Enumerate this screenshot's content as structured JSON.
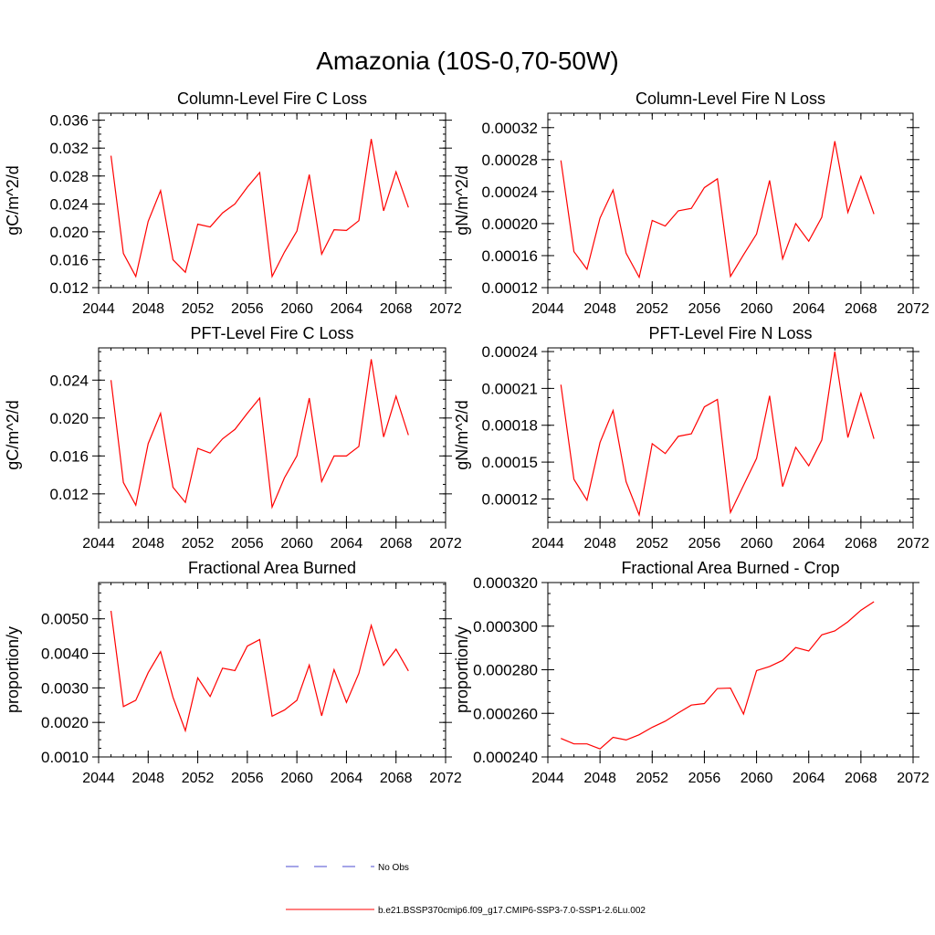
{
  "figure_title": "Amazonia (10S-0,70-50W)",
  "legend": {
    "no_obs_label": "No Obs",
    "case_label": "b.e21.BSSP370cmip6.f09_g17.CMIP6-SSP3-7.0-SSP1-2.6Lu.002",
    "case_color": "#ff0000",
    "no_obs_color": "#4b4bd2"
  },
  "chart_data": [
    {
      "type": "line",
      "title": "Column-Level Fire C Loss",
      "xlabel": "",
      "ylabel": "gC/m^2/d",
      "xlim": [
        2044,
        2072
      ],
      "ylim": [
        0.012,
        0.037
      ],
      "xticks": [
        "2044",
        "2048",
        "2052",
        "2056",
        "2060",
        "2064",
        "2068",
        "2072"
      ],
      "yticks": [
        "0.012",
        "0.016",
        "0.020",
        "0.024",
        "0.028",
        "0.032",
        "0.036"
      ],
      "grid": false,
      "series": [
        {
          "x": [
            2045,
            2046,
            2047,
            2048,
            2049,
            2050,
            2051,
            2052,
            2053,
            2054,
            2055,
            2056,
            2057,
            2058,
            2059,
            2060,
            2061,
            2062,
            2063,
            2064,
            2065,
            2066,
            2067,
            2068,
            2069
          ],
          "values": [
            0.0309,
            0.0169,
            0.0136,
            0.0215,
            0.0259,
            0.016,
            0.0142,
            0.0211,
            0.0207,
            0.0227,
            0.024,
            0.0264,
            0.0285,
            0.0136,
            0.0171,
            0.0201,
            0.0282,
            0.0168,
            0.0203,
            0.0202,
            0.0216,
            0.0333,
            0.023,
            0.0286,
            0.0235
          ]
        }
      ]
    },
    {
      "type": "line",
      "title": "Column-Level Fire N Loss",
      "xlabel": "",
      "ylabel": "gN/m^2/d",
      "xlim": [
        2044,
        2072
      ],
      "ylim": [
        0.00012,
        0.000338
      ],
      "xticks": [
        "2044",
        "2048",
        "2052",
        "2056",
        "2060",
        "2064",
        "2068",
        "2072"
      ],
      "yticks": [
        "0.00012",
        "0.00016",
        "0.00020",
        "0.00024",
        "0.00028",
        "0.00032"
      ],
      "grid": false,
      "series": [
        {
          "x": [
            2045,
            2046,
            2047,
            2048,
            2049,
            2050,
            2051,
            2052,
            2053,
            2054,
            2055,
            2056,
            2057,
            2058,
            2059,
            2060,
            2061,
            2062,
            2063,
            2064,
            2065,
            2066,
            2067,
            2068,
            2069
          ],
          "values": [
            0.000279,
            0.000165,
            0.000143,
            0.000207,
            0.000242,
            0.000163,
            0.000133,
            0.000204,
            0.000197,
            0.000216,
            0.000219,
            0.000245,
            0.000256,
            0.000134,
            0.000161,
            0.000187,
            0.000254,
            0.000156,
            0.0002,
            0.000178,
            0.000208,
            0.000303,
            0.000214,
            0.000259,
            0.000212
          ]
        }
      ]
    },
    {
      "type": "line",
      "title": "PFT-Level Fire C Loss",
      "xlabel": "",
      "ylabel": "gC/m^2/d",
      "xlim": [
        2044,
        2072
      ],
      "ylim": [
        0.009,
        0.0274
      ],
      "xticks": [
        "2044",
        "2048",
        "2052",
        "2056",
        "2060",
        "2064",
        "2068",
        "2072"
      ],
      "yticks": [
        "0.012",
        "0.016",
        "0.020",
        "0.024"
      ],
      "grid": false,
      "series": [
        {
          "x": [
            2045,
            2046,
            2047,
            2048,
            2049,
            2050,
            2051,
            2052,
            2053,
            2054,
            2055,
            2056,
            2057,
            2058,
            2059,
            2060,
            2061,
            2062,
            2063,
            2064,
            2065,
            2066,
            2067,
            2068,
            2069
          ],
          "values": [
            0.024,
            0.0132,
            0.0108,
            0.0173,
            0.0205,
            0.0127,
            0.0111,
            0.0168,
            0.0163,
            0.0178,
            0.0188,
            0.0205,
            0.0221,
            0.0106,
            0.0137,
            0.016,
            0.0221,
            0.0133,
            0.016,
            0.016,
            0.017,
            0.0262,
            0.018,
            0.0223,
            0.0182
          ]
        }
      ]
    },
    {
      "type": "line",
      "title": "PFT-Level Fire N Loss",
      "xlabel": "",
      "ylabel": "gN/m^2/d",
      "xlim": [
        2044,
        2072
      ],
      "ylim": [
        0.000101,
        0.000243
      ],
      "xticks": [
        "2044",
        "2048",
        "2052",
        "2056",
        "2060",
        "2064",
        "2068",
        "2072"
      ],
      "yticks": [
        "0.00012",
        "0.00015",
        "0.00018",
        "0.00021",
        "0.00024"
      ],
      "grid": false,
      "series": [
        {
          "x": [
            2045,
            2046,
            2047,
            2048,
            2049,
            2050,
            2051,
            2052,
            2053,
            2054,
            2055,
            2056,
            2057,
            2058,
            2059,
            2060,
            2061,
            2062,
            2063,
            2064,
            2065,
            2066,
            2067,
            2068,
            2069
          ],
          "values": [
            0.000213,
            0.000136,
            0.000119,
            0.000166,
            0.000192,
            0.000134,
            0.000107,
            0.000165,
            0.000157,
            0.000171,
            0.000173,
            0.000195,
            0.000201,
            0.000109,
            0.000131,
            0.000153,
            0.000204,
            0.00013,
            0.000162,
            0.000147,
            0.000168,
            0.00024,
            0.00017,
            0.000206,
            0.000169
          ]
        }
      ]
    },
    {
      "type": "line",
      "title": "Fractional Area Burned",
      "xlabel": "",
      "ylabel": "proportion/y",
      "xlim": [
        2044,
        2072
      ],
      "ylim": [
        0.001,
        0.00605
      ],
      "xticks": [
        "2044",
        "2048",
        "2052",
        "2056",
        "2060",
        "2064",
        "2068",
        "2072"
      ],
      "yticks": [
        "0.0010",
        "0.0020",
        "0.0030",
        "0.0040",
        "0.0050"
      ],
      "grid": false,
      "series": [
        {
          "x": [
            2045,
            2046,
            2047,
            2048,
            2049,
            2050,
            2051,
            2052,
            2053,
            2054,
            2055,
            2056,
            2057,
            2058,
            2059,
            2060,
            2061,
            2062,
            2063,
            2064,
            2065,
            2066,
            2067,
            2068,
            2069
          ],
          "values": [
            0.00523,
            0.00246,
            0.00264,
            0.00344,
            0.00405,
            0.00273,
            0.00176,
            0.00329,
            0.00275,
            0.00357,
            0.0035,
            0.00421,
            0.0044,
            0.00218,
            0.00236,
            0.00264,
            0.00366,
            0.00219,
            0.00353,
            0.00258,
            0.00342,
            0.00481,
            0.00365,
            0.00412,
            0.00349
          ]
        }
      ]
    },
    {
      "type": "line",
      "title": "Fractional Area Burned - Crop",
      "xlabel": "",
      "ylabel": "proportion/y",
      "xlim": [
        2044,
        2072
      ],
      "ylim": [
        0.00024,
        0.00032
      ],
      "xticks": [
        "2044",
        "2048",
        "2052",
        "2056",
        "2060",
        "2064",
        "2068",
        "2072"
      ],
      "yticks": [
        "0.000240",
        "0.000260",
        "0.000280",
        "0.000300",
        "0.000320"
      ],
      "grid": false,
      "series": [
        {
          "x": [
            2045,
            2046,
            2047,
            2048,
            2049,
            2050,
            2051,
            2052,
            2053,
            2054,
            2055,
            2056,
            2057,
            2058,
            2059,
            2060,
            2061,
            2062,
            2063,
            2064,
            2065,
            2066,
            2067,
            2068,
            2069
          ],
          "values": [
            0.0002485,
            0.000246,
            0.000246,
            0.0002437,
            0.000249,
            0.0002478,
            0.0002502,
            0.0002536,
            0.0002564,
            0.0002602,
            0.0002638,
            0.0002645,
            0.0002714,
            0.0002716,
            0.0002597,
            0.0002796,
            0.0002815,
            0.0002843,
            0.0002902,
            0.0002886,
            0.000296,
            0.0002978,
            0.000302,
            0.0003073,
            0.0003112
          ]
        }
      ]
    }
  ]
}
